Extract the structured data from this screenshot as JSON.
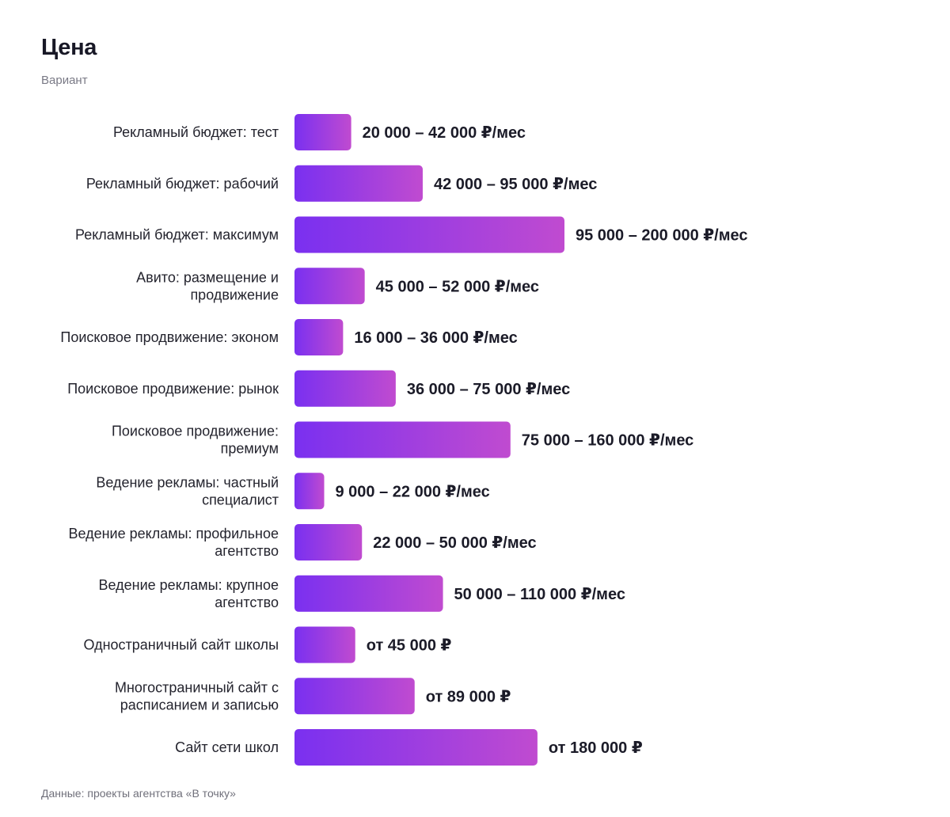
{
  "page": {
    "title": "Цена",
    "subtitle": "Вариант",
    "footnote": "Данные: проекты агентства «В точку»"
  },
  "colors": {
    "bar_gradient_start": "#7a30f0",
    "bar_gradient_end": "#c04bd0",
    "text_primary": "#1b1b28",
    "text_muted": "#7a7a86"
  },
  "chart_data": {
    "type": "bar",
    "orientation": "horizontal",
    "title": "Цена",
    "subtitle": "Вариант",
    "grid": false,
    "legend": "none",
    "unit": "₽",
    "xlim": [
      0,
      200000
    ],
    "categories": [
      [
        "Рекламный бюджет: тест"
      ],
      [
        "Рекламный бюджет: рабочий"
      ],
      [
        "Рекламный бюджет: максимум"
      ],
      [
        "Авито: размещение и",
        "продвижение"
      ],
      [
        "Поисковое продвижение: эконом"
      ],
      [
        "Поисковое продвижение: рынок"
      ],
      [
        "Поисковое продвижение:",
        "премиум"
      ],
      [
        "Ведение рекламы: частный",
        "специалист"
      ],
      [
        "Ведение рекламы: профильное",
        "агентство"
      ],
      [
        "Ведение рекламы: крупное",
        "агентство"
      ],
      [
        "Одностраничный сайт школы"
      ],
      [
        "Многостраничный сайт с",
        "расписанием и записью"
      ],
      [
        "Сайт сети школ"
      ]
    ],
    "values": [
      42000,
      95000,
      200000,
      52000,
      36000,
      75000,
      160000,
      22000,
      50000,
      110000,
      45000,
      89000,
      180000
    ],
    "data_labels": [
      "20 000 – 42 000 ₽/мес",
      "42 000 – 95 000 ₽/мес",
      "95 000 – 200 000 ₽/мес",
      "45 000 – 52 000 ₽/мес",
      "16 000 – 36 000 ₽/мес",
      "36 000 – 75 000 ₽/мес",
      "75 000 – 160 000 ₽/мес",
      "9 000 – 22 000 ₽/мес",
      "22 000 – 50 000 ₽/мес",
      "50 000 – 110 000 ₽/мес",
      "от 45 000 ₽",
      "от 89 000 ₽",
      "от 180 000 ₽"
    ]
  }
}
